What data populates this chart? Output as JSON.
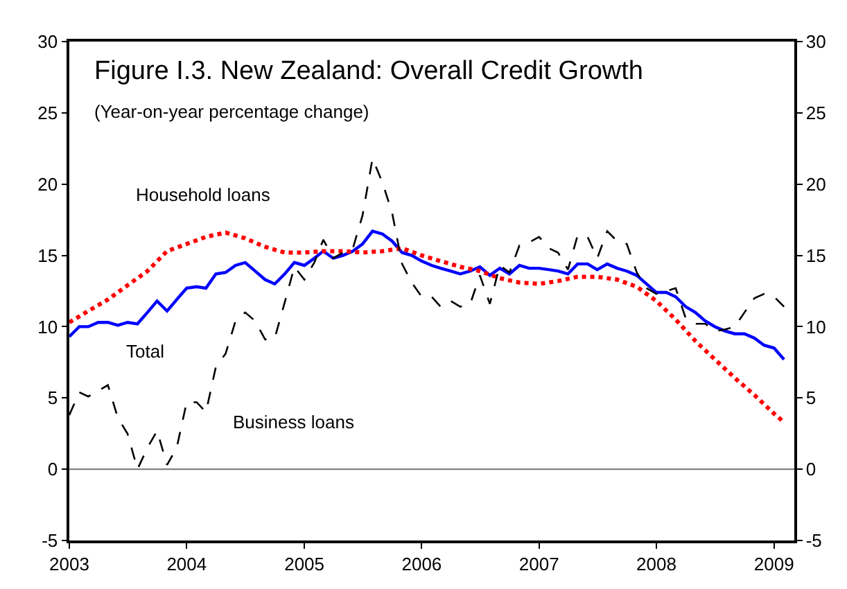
{
  "chart_data": {
    "type": "line",
    "title": "Figure I.3. New Zealand: Overall Credit Growth",
    "subtitle": "(Year-on-year percentage change)",
    "series": [
      {
        "name": "Total",
        "color": "#0000ff",
        "line_style": "solid",
        "x": [
          "2003-01",
          "2003-02",
          "2003-03",
          "2003-04",
          "2003-05",
          "2003-06",
          "2003-07",
          "2003-08",
          "2003-09",
          "2003-10",
          "2003-11",
          "2003-12",
          "2004-01",
          "2004-02",
          "2004-03",
          "2004-04",
          "2004-05",
          "2004-06",
          "2004-07",
          "2004-08",
          "2004-09",
          "2004-10",
          "2004-11",
          "2004-12",
          "2005-01",
          "2005-02",
          "2005-03",
          "2005-04",
          "2005-05",
          "2005-06",
          "2005-07",
          "2005-08",
          "2005-09",
          "2005-10",
          "2005-11",
          "2005-12",
          "2006-01",
          "2006-02",
          "2006-03",
          "2006-04",
          "2006-05",
          "2006-06",
          "2006-07",
          "2006-08",
          "2006-09",
          "2006-10",
          "2006-11",
          "2006-12",
          "2007-01",
          "2007-02",
          "2007-03",
          "2007-04",
          "2007-05",
          "2007-06",
          "2007-07",
          "2007-08",
          "2007-09",
          "2007-10",
          "2007-11",
          "2007-12",
          "2008-01",
          "2008-02",
          "2008-03",
          "2008-04",
          "2008-05",
          "2008-06",
          "2008-07",
          "2008-08",
          "2008-09",
          "2008-10",
          "2008-11",
          "2008-12",
          "2009-01",
          "2009-02"
        ],
        "values": [
          9.3,
          10.0,
          10.0,
          10.3,
          10.3,
          10.1,
          10.3,
          10.2,
          11.0,
          11.8,
          11.1,
          11.9,
          12.7,
          12.8,
          12.7,
          13.7,
          13.8,
          14.3,
          14.5,
          13.9,
          13.3,
          13.0,
          13.7,
          14.5,
          14.3,
          14.8,
          15.3,
          14.8,
          15.0,
          15.3,
          15.8,
          16.7,
          16.5,
          16.0,
          15.2,
          15.0,
          14.6,
          14.3,
          14.1,
          13.9,
          13.7,
          13.9,
          14.2,
          13.6,
          14.1,
          13.7,
          14.3,
          14.1,
          14.1,
          14.0,
          13.9,
          13.7,
          14.4,
          14.4,
          14.0,
          14.4,
          14.1,
          13.9,
          13.6,
          13.0,
          12.4,
          12.4,
          12.1,
          11.4,
          11.0,
          10.4,
          10.0,
          9.7,
          9.5,
          9.5,
          9.2,
          8.7,
          8.5,
          7.7
        ]
      },
      {
        "name": "Household loans",
        "color": "#ff0000",
        "line_style": "dotted",
        "x": [
          "2003-01",
          "2003-03",
          "2003-05",
          "2003-07",
          "2003-09",
          "2003-11",
          "2004-01",
          "2004-03",
          "2004-05",
          "2004-07",
          "2004-09",
          "2004-11",
          "2005-01",
          "2005-03",
          "2005-05",
          "2005-07",
          "2005-09",
          "2005-11",
          "2006-01",
          "2006-03",
          "2006-05",
          "2006-07",
          "2006-09",
          "2006-11",
          "2007-01",
          "2007-03",
          "2007-05",
          "2007-07",
          "2007-09",
          "2007-11",
          "2008-01",
          "2008-03",
          "2008-05",
          "2008-07",
          "2008-09",
          "2008-11",
          "2009-01",
          "2009-02"
        ],
        "values": [
          10.3,
          11.1,
          11.9,
          12.9,
          13.9,
          15.3,
          15.8,
          16.3,
          16.6,
          16.2,
          15.6,
          15.2,
          15.2,
          15.3,
          15.3,
          15.2,
          15.3,
          15.5,
          15.0,
          14.6,
          14.2,
          13.9,
          13.4,
          13.1,
          13.0,
          13.2,
          13.5,
          13.5,
          13.3,
          12.8,
          11.8,
          10.5,
          9.0,
          7.7,
          6.4,
          5.2,
          3.9,
          3.3
        ]
      },
      {
        "name": "Business loans",
        "color": "#000000",
        "line_style": "dashed",
        "x": [
          "2003-01",
          "2003-02",
          "2003-03",
          "2003-05",
          "2003-06",
          "2003-07",
          "2003-08",
          "2003-09",
          "2003-10",
          "2003-11",
          "2003-12",
          "2004-01",
          "2004-02",
          "2004-03",
          "2004-04",
          "2004-05",
          "2004-06",
          "2004-07",
          "2004-08",
          "2004-09",
          "2004-10",
          "2004-11",
          "2004-12",
          "2005-01",
          "2005-02",
          "2005-03",
          "2005-04",
          "2005-05",
          "2005-06",
          "2005-07",
          "2005-08",
          "2005-09",
          "2005-10",
          "2005-11",
          "2005-12",
          "2006-01",
          "2006-02",
          "2006-03",
          "2006-04",
          "2006-05",
          "2006-06",
          "2006-07",
          "2006-08",
          "2006-09",
          "2006-10",
          "2006-11",
          "2006-12",
          "2007-01",
          "2007-02",
          "2007-03",
          "2007-04",
          "2007-05",
          "2007-06",
          "2007-07",
          "2007-08",
          "2007-09",
          "2007-10",
          "2007-11",
          "2007-12",
          "2008-01",
          "2008-02",
          "2008-03",
          "2008-04",
          "2008-05",
          "2008-06",
          "2008-07",
          "2008-08",
          "2008-09",
          "2008-10",
          "2008-11",
          "2008-12",
          "2009-01",
          "2009-02"
        ],
        "values": [
          3.8,
          5.4,
          5.1,
          5.9,
          3.6,
          2.5,
          0.0,
          1.5,
          2.7,
          0.3,
          1.5,
          4.7,
          4.7,
          4.0,
          7.2,
          8.1,
          10.4,
          11.0,
          10.4,
          9.1,
          9.2,
          11.7,
          14.2,
          13.3,
          14.5,
          16.1,
          14.8,
          15.2,
          15.5,
          17.8,
          21.8,
          20.1,
          18.0,
          14.4,
          13.1,
          12.1,
          12.1,
          11.4,
          11.8,
          11.4,
          11.6,
          13.6,
          11.6,
          14.3,
          13.8,
          15.7,
          15.9,
          16.3,
          15.5,
          15.2,
          14.0,
          16.4,
          16.3,
          14.8,
          16.7,
          16.0,
          15.8,
          13.8,
          12.7,
          12.3,
          12.5,
          12.7,
          10.6,
          10.2,
          10.2,
          9.7,
          9.8,
          10.0,
          11.0,
          12.0,
          12.3,
          12.1,
          11.4
        ]
      }
    ],
    "xlim": [
      "2003-01",
      "2009-03-05"
    ],
    "xticks": [
      "2003",
      "2004",
      "2005",
      "2006",
      "2007",
      "2008",
      "2009"
    ],
    "ylim": [
      -5,
      30
    ],
    "yticks": [
      -5,
      0,
      5,
      10,
      15,
      20,
      25,
      30
    ],
    "y2lim": [
      -5,
      30
    ],
    "y2ticks": [
      -5,
      0,
      5,
      10,
      15,
      20,
      25,
      30
    ],
    "ref_lines": [
      {
        "axis": "y",
        "value": 0,
        "color": "#808080"
      }
    ],
    "legend": false,
    "marker": "none"
  }
}
